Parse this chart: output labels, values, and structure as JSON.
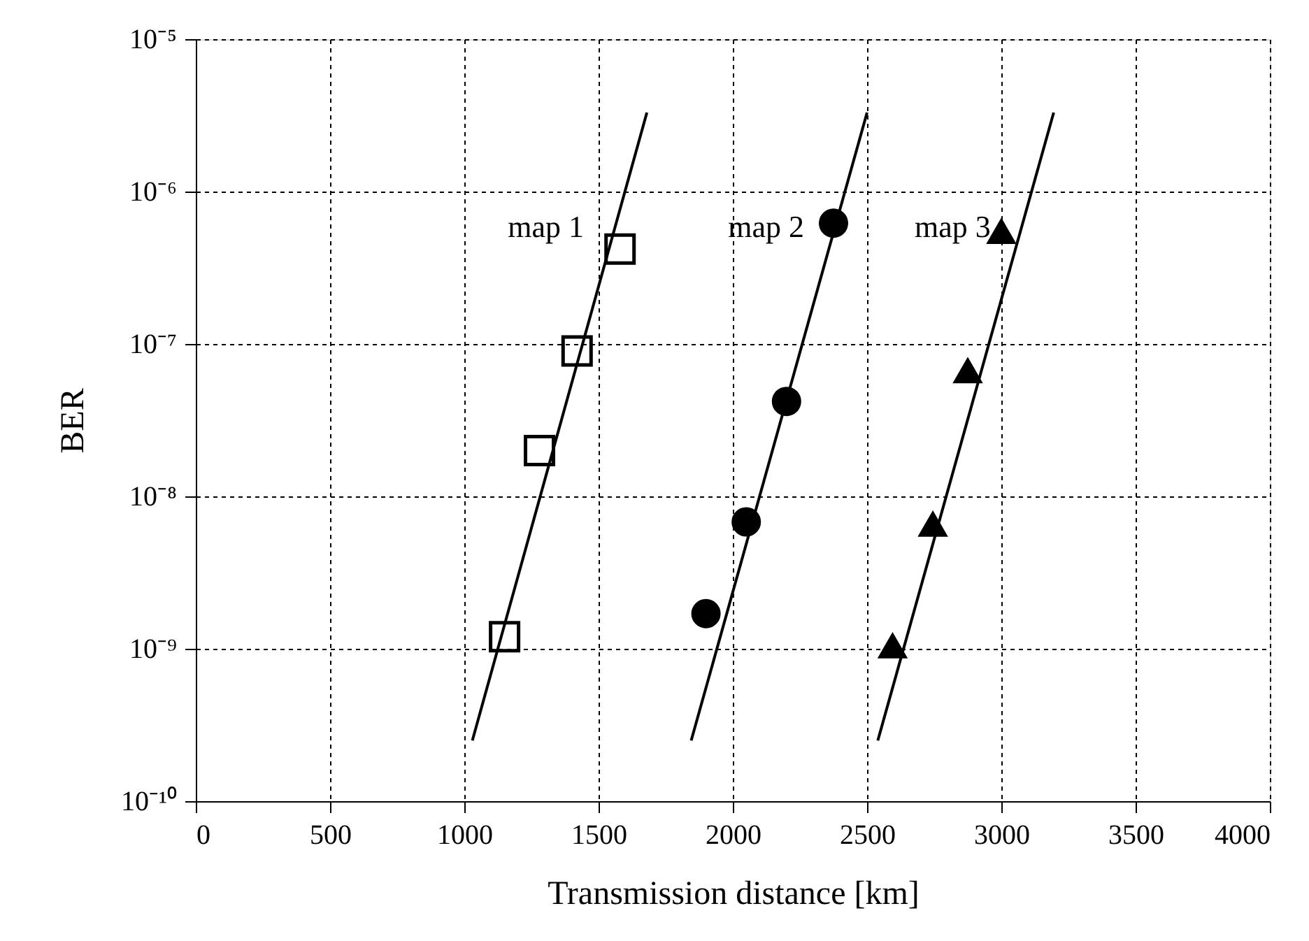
{
  "chart_data": {
    "type": "scatter",
    "xlabel": "Transmission distance  [km]",
    "ylabel": "BER",
    "log": "y",
    "grid": true,
    "xlim": [
      0,
      4000
    ],
    "xticks": [
      0,
      500,
      1000,
      1500,
      2000,
      2500,
      3000,
      3500,
      4000
    ],
    "ylim": [
      1e-10,
      1e-05
    ],
    "yticks": [
      {
        "value": 1e-10,
        "label": "10⁻¹⁰"
      },
      {
        "value": 1e-09,
        "label": "10⁻⁹"
      },
      {
        "value": 1e-08,
        "label": "10⁻⁸"
      },
      {
        "value": 1e-07,
        "label": "10⁻⁷"
      },
      {
        "value": 1e-06,
        "label": "10⁻⁶"
      },
      {
        "value": 1e-05,
        "label": "10⁻⁵"
      }
    ],
    "series": [
      {
        "type": "scatter",
        "marker": "square",
        "color": "#000000",
        "x": [
          1150,
          1280,
          1420,
          1580
        ],
        "values": [
          1.2e-09,
          2e-08,
          9e-08,
          4.2e-07
        ]
      },
      {
        "type": "scatter",
        "marker": "circle",
        "color": "#000000",
        "x": [
          1900,
          2050,
          2200,
          2375
        ],
        "values": [
          1.7e-09,
          6.8e-09,
          4.2e-08,
          6.2e-07
        ]
      },
      {
        "type": "scatter",
        "marker": "triangle",
        "color": "#000000",
        "x": [
          2595,
          2745,
          2875,
          3000
        ],
        "values": [
          1.05e-09,
          6.6e-09,
          6.7e-08,
          5.5e-07
        ]
      },
      {
        "type": "line",
        "marker": "none",
        "name": "map 1",
        "color": "#000000",
        "x": [
          1030,
          1680
        ],
        "values": [
          2.5e-10,
          3.3e-06
        ]
      },
      {
        "type": "line",
        "marker": "none",
        "name": "map 2",
        "color": "#000000",
        "x": [
          1845,
          2500
        ],
        "values": [
          2.5e-10,
          3.3e-06
        ]
      },
      {
        "type": "line",
        "marker": "none",
        "name": "map 3",
        "color": "#000000",
        "x": [
          2540,
          3195
        ],
        "values": [
          2.5e-10,
          3.3e-06
        ]
      }
    ]
  }
}
